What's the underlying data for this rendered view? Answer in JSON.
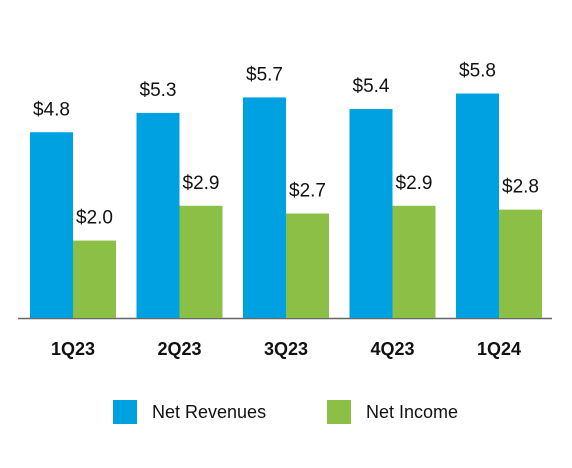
{
  "chart_data": {
    "type": "bar",
    "categories": [
      "1Q23",
      "2Q23",
      "3Q23",
      "4Q23",
      "1Q24"
    ],
    "series": [
      {
        "name": "Net Revenues",
        "color": "#00a1e0",
        "values": [
          4.8,
          5.3,
          5.7,
          5.4,
          5.8
        ],
        "value_labels": [
          "$4.8",
          "$5.3",
          "$5.7",
          "$5.4",
          "$5.8"
        ]
      },
      {
        "name": "Net Income",
        "color": "#8cbf45",
        "values": [
          2.0,
          2.9,
          2.7,
          2.9,
          2.8
        ],
        "value_labels": [
          "$2.0",
          "$2.9",
          "$2.7",
          "$2.9",
          "$2.8"
        ]
      }
    ]
  }
}
